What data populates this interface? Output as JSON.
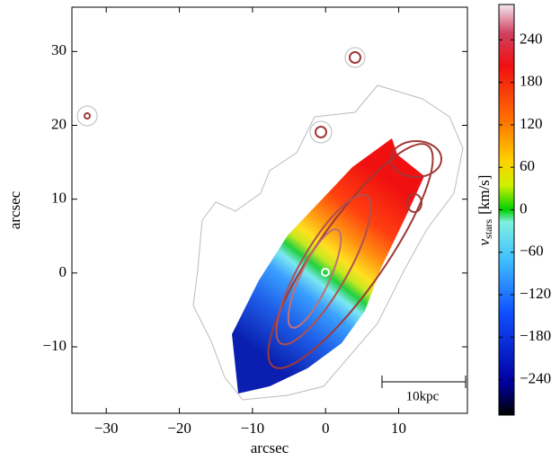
{
  "chart_data": {
    "type": "image",
    "xlabel": "arcsec",
    "ylabel": "arcsec",
    "xlim": [
      -34.7,
      19.4
    ],
    "ylim": [
      -19,
      36
    ],
    "xticks": [
      {
        "value": -30,
        "label": "−30"
      },
      {
        "value": -20,
        "label": "−20"
      },
      {
        "value": -10,
        "label": "−10"
      },
      0,
      10
    ],
    "yticks": [
      {
        "value": -10,
        "label": "−10"
      },
      0,
      10,
      20,
      30
    ],
    "colorbar": {
      "label": {
        "symbol": "v",
        "subscript": "stars",
        "unit": "[km/s]"
      },
      "clim": [
        -290,
        290
      ],
      "ticks": [
        {
          "value": -240,
          "label": "−240"
        },
        {
          "value": -180,
          "label": "−180"
        },
        {
          "value": -120,
          "label": "−120"
        },
        {
          "value": -60,
          "label": "−60"
        },
        0,
        60,
        120,
        180,
        240
      ]
    },
    "annotation": "10kpc"
  }
}
